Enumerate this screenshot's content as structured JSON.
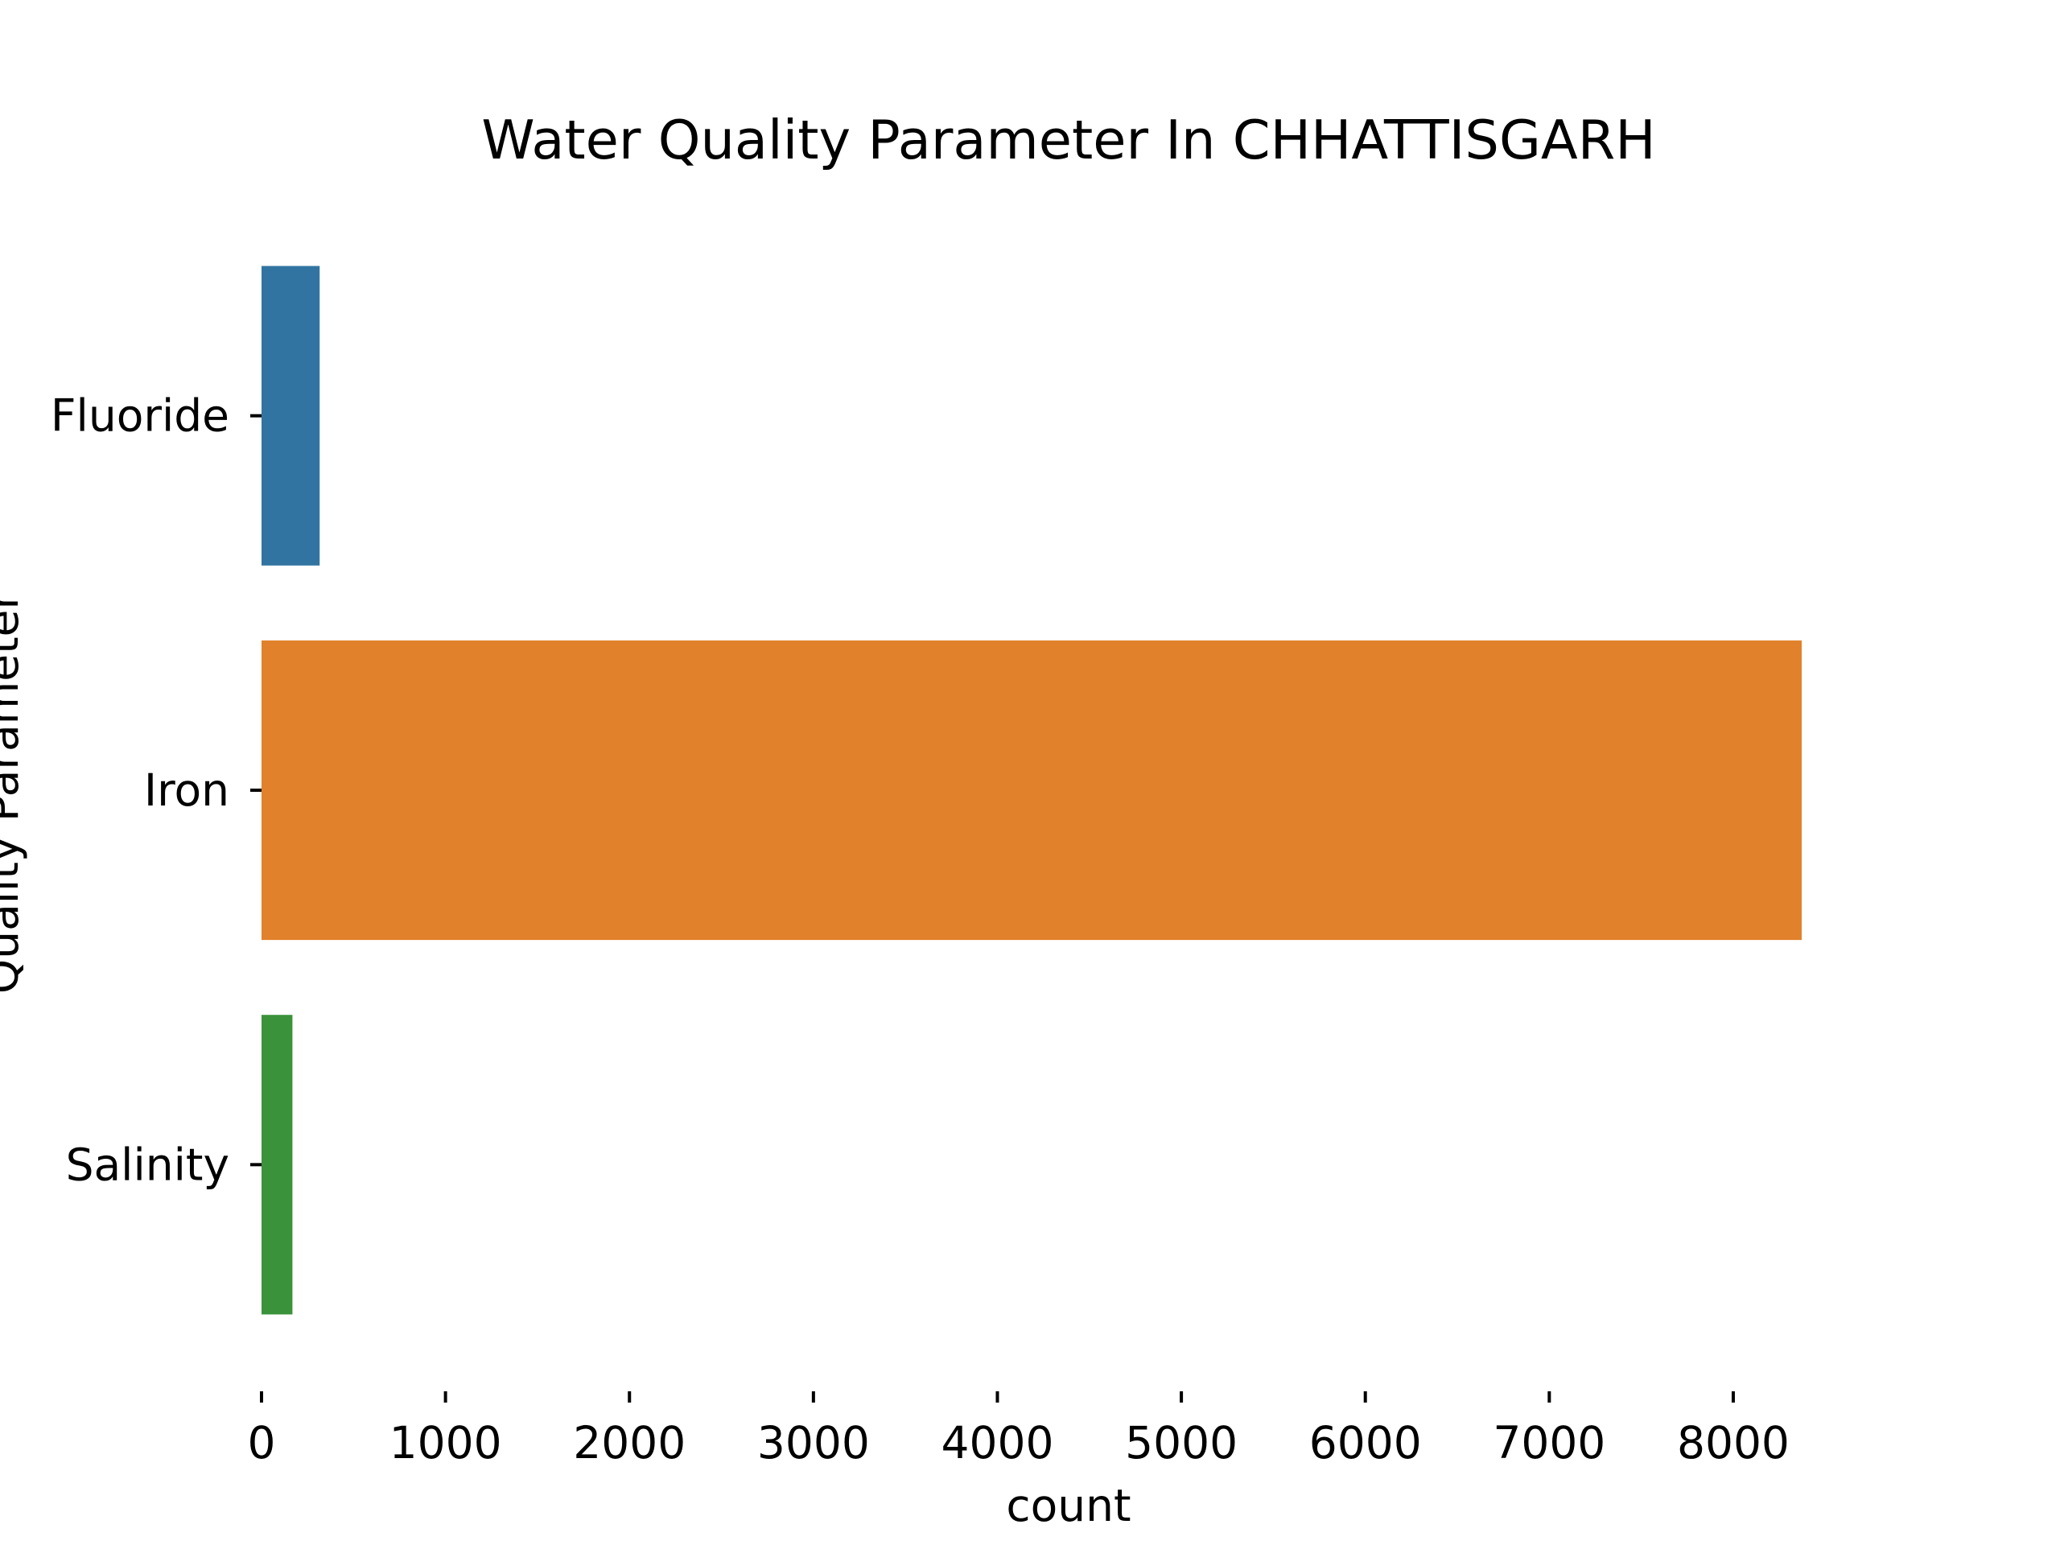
{
  "chart_data": {
    "type": "bar",
    "orientation": "horizontal",
    "title": "Water Quality Parameter In CHHATTISGARH",
    "xlabel": "count",
    "ylabel": "Quality Parameter",
    "categories": [
      "Fluoride",
      "Iron",
      "Salinity"
    ],
    "values": [
      316,
      8372,
      168
    ],
    "colors": [
      "#3274a1",
      "#e1812c",
      "#3a923a"
    ],
    "xlim": [
      0,
      8372
    ],
    "xticks": [
      0,
      1000,
      2000,
      3000,
      4000,
      5000,
      6000,
      7000,
      8000
    ],
    "xtick_labels": [
      "0",
      "1000",
      "2000",
      "3000",
      "4000",
      "5000",
      "6000",
      "7000",
      "8000"
    ],
    "grid": false,
    "legend": "none"
  }
}
